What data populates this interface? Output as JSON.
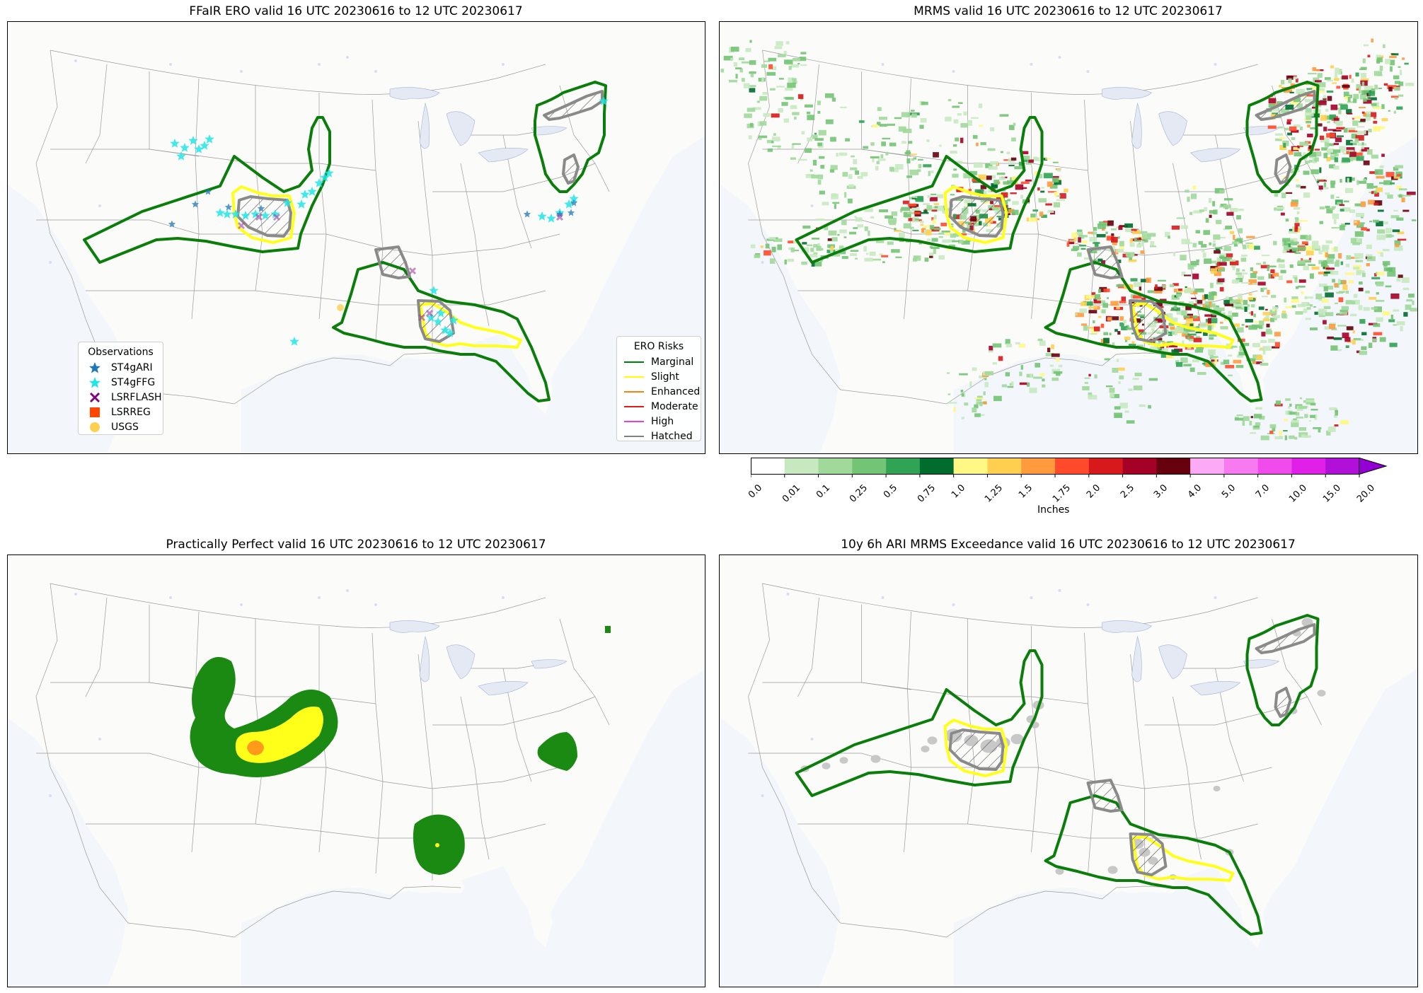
{
  "panels": [
    {
      "id": "ero",
      "title": "FFaIR ERO valid 16 UTC 20230616 to 12 UTC 20230617"
    },
    {
      "id": "mrms",
      "title": "MRMS valid 16 UTC 20230616 to 12 UTC 20230617"
    },
    {
      "id": "pp",
      "title": "Practically Perfect valid 16 UTC 20230616 to 12 UTC 20230617"
    },
    {
      "id": "ari",
      "title": "10y 6h ARI MRMS Exceedance valid 16 UTC 20230616 to 12 UTC 20230617"
    }
  ],
  "observations_legend": {
    "title": "Observations",
    "items": [
      {
        "label": "ST4gARI",
        "symbol": "star",
        "color": "#1f77b4"
      },
      {
        "label": "ST4gFFG",
        "symbol": "star",
        "color": "#22e5e5"
      },
      {
        "label": "LSRFLASH",
        "symbol": "x",
        "color": "#800080"
      },
      {
        "label": "LSRREG",
        "symbol": "square",
        "color": "#ff4500"
      },
      {
        "label": "USGS",
        "symbol": "circle",
        "color": "#ffd04f"
      }
    ]
  },
  "ero_legend": {
    "title": "ERO Risks",
    "items": [
      {
        "label": "Marginal",
        "color": "#008000"
      },
      {
        "label": "Slight",
        "color": "#ffff00"
      },
      {
        "label": "Enhanced",
        "color": "#ff7f0e"
      },
      {
        "label": "Moderate",
        "color": "#e31a1c"
      },
      {
        "label": "High",
        "color": "#e040e0"
      },
      {
        "label": "Hatched",
        "color": "#808080"
      }
    ]
  },
  "colorbar": {
    "label": "Inches",
    "ticks": [
      "0.0",
      "0.01",
      "0.1",
      "0.25",
      "0.5",
      "0.75",
      "1.0",
      "1.25",
      "1.5",
      "1.75",
      "2.0",
      "2.5",
      "3.0",
      "4.0",
      "5.0",
      "7.0",
      "10.0",
      "15.0",
      "20.0"
    ],
    "colors": [
      "#ffffff",
      "#c7e9c0",
      "#a1d99b",
      "#74c476",
      "#31a354",
      "#006d2c",
      "#fff885",
      "#ffd04f",
      "#ff9a3d",
      "#ff4b2b",
      "#d7191c",
      "#a50026",
      "#67000d",
      "#fbaaf5",
      "#f77af0",
      "#f04cec",
      "#e020e8",
      "#b010d8",
      "#9400d3"
    ]
  },
  "colors": {
    "marginal": "#0a7d0a",
    "slight": "#ffff1a",
    "hatched": "#8a8a8a",
    "pp_green": "#1a8a13",
    "pp_yellow": "#ffff1a",
    "pp_orange": "#ff9a1a",
    "exceed_gray": "#c8c8c8"
  }
}
